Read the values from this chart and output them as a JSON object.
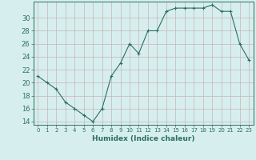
{
  "x": [
    0,
    1,
    2,
    3,
    4,
    5,
    6,
    7,
    8,
    9,
    10,
    11,
    12,
    13,
    14,
    15,
    16,
    17,
    18,
    19,
    20,
    21,
    22,
    23
  ],
  "y": [
    21,
    20,
    19,
    17,
    16,
    15,
    14,
    16,
    21,
    23,
    26,
    24.5,
    28,
    28,
    31,
    31.5,
    31.5,
    31.5,
    31.5,
    32,
    31,
    31,
    26,
    23.5
  ],
  "line_color": "#2d6e63",
  "marker": "+",
  "marker_size": 3.5,
  "bg_color": "#d6efee",
  "grid_color": "#c8b4b4",
  "tick_color": "#2d6e63",
  "label_color": "#2d6e63",
  "xlabel": "Humidex (Indice chaleur)",
  "xlim": [
    -0.5,
    23.5
  ],
  "ylim": [
    13.5,
    32.5
  ],
  "yticks": [
    14,
    16,
    18,
    20,
    22,
    24,
    26,
    28,
    30
  ],
  "xticks": [
    0,
    1,
    2,
    3,
    4,
    5,
    6,
    7,
    8,
    9,
    10,
    11,
    12,
    13,
    14,
    15,
    16,
    17,
    18,
    19,
    20,
    21,
    22,
    23
  ]
}
